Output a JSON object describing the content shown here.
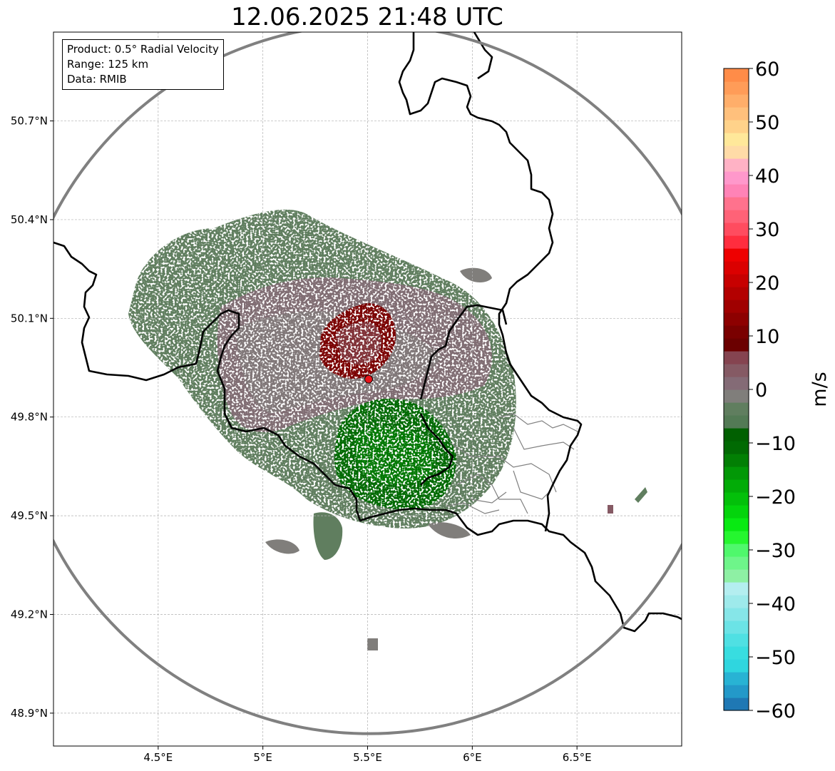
{
  "title": "12.06.2025 21:48 UTC",
  "info": {
    "product": "Product: 0.5° Radial Velocity",
    "range": "Range: 125 km",
    "data": "Data: RMIB"
  },
  "map": {
    "lon_range": [
      4.0,
      7.0
    ],
    "lat_range": [
      48.8,
      50.97
    ],
    "lon_ticks": [
      "4.5°E",
      "5°E",
      "5.5°E",
      "6°E",
      "6.5°E"
    ],
    "lon_tick_values": [
      4.5,
      5.0,
      5.5,
      6.0,
      6.5
    ],
    "lat_ticks": [
      "50.7°N",
      "50.4°N",
      "50.1°N",
      "49.8°N",
      "49.5°N",
      "49.2°N",
      "48.9°N"
    ],
    "lat_tick_values": [
      50.7,
      50.4,
      50.1,
      49.8,
      49.5,
      49.2,
      48.9
    ],
    "radar_site": {
      "lon": 5.505,
      "lat": 49.915
    },
    "range_ring_color": "#808080",
    "border_color": "#000000",
    "grid": true
  },
  "colorbar": {
    "label": "m/s",
    "min": -60,
    "max": 60,
    "ticks": [
      "60",
      "50",
      "40",
      "30",
      "20",
      "10",
      "0",
      "−10",
      "−20",
      "−30",
      "−40",
      "−50",
      "−60"
    ],
    "tick_values": [
      60,
      50,
      40,
      30,
      20,
      10,
      0,
      -10,
      -20,
      -30,
      -40,
      -50,
      -60
    ],
    "colors": [
      "#1f78b4",
      "#2399c9",
      "#28b3d4",
      "#2fd6df",
      "#38dde0",
      "#4fe0e3",
      "#6be3e6",
      "#86e6e8",
      "#9eeaeb",
      "#b4eef0",
      "#8ef0a4",
      "#6ef58a",
      "#4ff86c",
      "#25f62f",
      "#08ea12",
      "#04d40c",
      "#03c00a",
      "#02ac07",
      "#029806",
      "#027f04",
      "#016a03",
      "#016001",
      "#537a55",
      "#607e5f",
      "#807e7b",
      "#846b76",
      "#855a64",
      "#854450",
      "#6b0000",
      "#7a0000",
      "#8d0000",
      "#a00000",
      "#b30000",
      "#c70000",
      "#db0000",
      "#ee0000",
      "#ff2d3e",
      "#ff4c5f",
      "#ff6277",
      "#ff728d",
      "#ff83b6",
      "#ff98cb",
      "#ffb2c5",
      "#ffdba7",
      "#ffe89a",
      "#ffd28a",
      "#ffc07c",
      "#ffae6a",
      "#ff9c58",
      "#ff8c48"
    ]
  }
}
